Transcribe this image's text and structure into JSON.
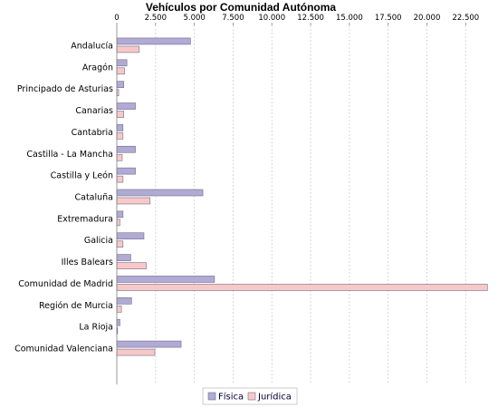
{
  "chart_data": {
    "type": "bar",
    "orientation": "horizontal",
    "title": "Vehículos por Comunidad Autónoma",
    "xlabel": "",
    "ylabel": "",
    "xlim": [
      0,
      24000
    ],
    "x_ticks": [
      0,
      2500,
      5000,
      7500,
      10000,
      12500,
      15000,
      17500,
      20000,
      22500
    ],
    "x_tick_labels": [
      "0",
      "2.500",
      "5.000",
      "7.500",
      "10.000",
      "12.500",
      "15.000",
      "17.500",
      "20.000",
      "22.500"
    ],
    "x_axis_position": "top",
    "grid": true,
    "legend_position": "bottom",
    "categories": [
      "Andalucía",
      "Aragón",
      "Principado de Asturias",
      "Canarias",
      "Cantabria",
      "Castilla - La Mancha",
      "Castilla y León",
      "Cataluña",
      "Extremadura",
      "Galicia",
      "Illes Balears",
      "Comunidad de Madrid",
      "Región de Murcia",
      "La Rioja",
      "Comunidad Valenciana"
    ],
    "series": [
      {
        "name": "Física",
        "color": "#b0aad4",
        "values": [
          4750,
          650,
          450,
          1200,
          400,
          1200,
          1200,
          5550,
          400,
          1750,
          900,
          6300,
          950,
          200,
          4150
        ]
      },
      {
        "name": "Jurídica",
        "color": "#f8c8c8",
        "values": [
          1450,
          500,
          120,
          450,
          400,
          350,
          400,
          2150,
          200,
          400,
          1900,
          23900,
          300,
          50,
          2450
        ]
      }
    ]
  }
}
